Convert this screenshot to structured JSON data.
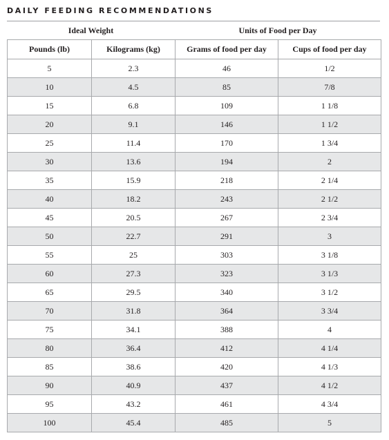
{
  "header": {
    "title": "DAILY FEEDING RECOMMENDATIONS"
  },
  "table": {
    "groups": [
      "Ideal Weight",
      "Units of Food per Day"
    ],
    "columns": [
      "Pounds (lb)",
      "Kilograms (kg)",
      "Grams of food per day",
      "Cups of food per day"
    ],
    "rows": [
      [
        5,
        2.3,
        46,
        "1/2"
      ],
      [
        10,
        4.5,
        85,
        "7/8"
      ],
      [
        15,
        6.8,
        109,
        "1 1/8"
      ],
      [
        20,
        9.1,
        146,
        "1 1/2"
      ],
      [
        25,
        11.4,
        170,
        "1 3/4"
      ],
      [
        30,
        13.6,
        194,
        2
      ],
      [
        35,
        15.9,
        218,
        "2 1/4"
      ],
      [
        40,
        18.2,
        243,
        "2 1/2"
      ],
      [
        45,
        20.5,
        267,
        "2 3/4"
      ],
      [
        50,
        22.7,
        291,
        3
      ],
      [
        55,
        25,
        303,
        "3 1/8"
      ],
      [
        60,
        27.3,
        323,
        "3 1/3"
      ],
      [
        65,
        29.5,
        340,
        "3 1/2"
      ],
      [
        70,
        31.8,
        364,
        "3 3/4"
      ],
      [
        75,
        34.1,
        388,
        4
      ],
      [
        80,
        36.4,
        412,
        "4 1/4"
      ],
      [
        85,
        38.6,
        420,
        "4 1/3"
      ],
      [
        90,
        40.9,
        437,
        "4 1/2"
      ],
      [
        95,
        43.2,
        461,
        "4 3/4"
      ],
      [
        100,
        45.4,
        485,
        5
      ]
    ]
  }
}
